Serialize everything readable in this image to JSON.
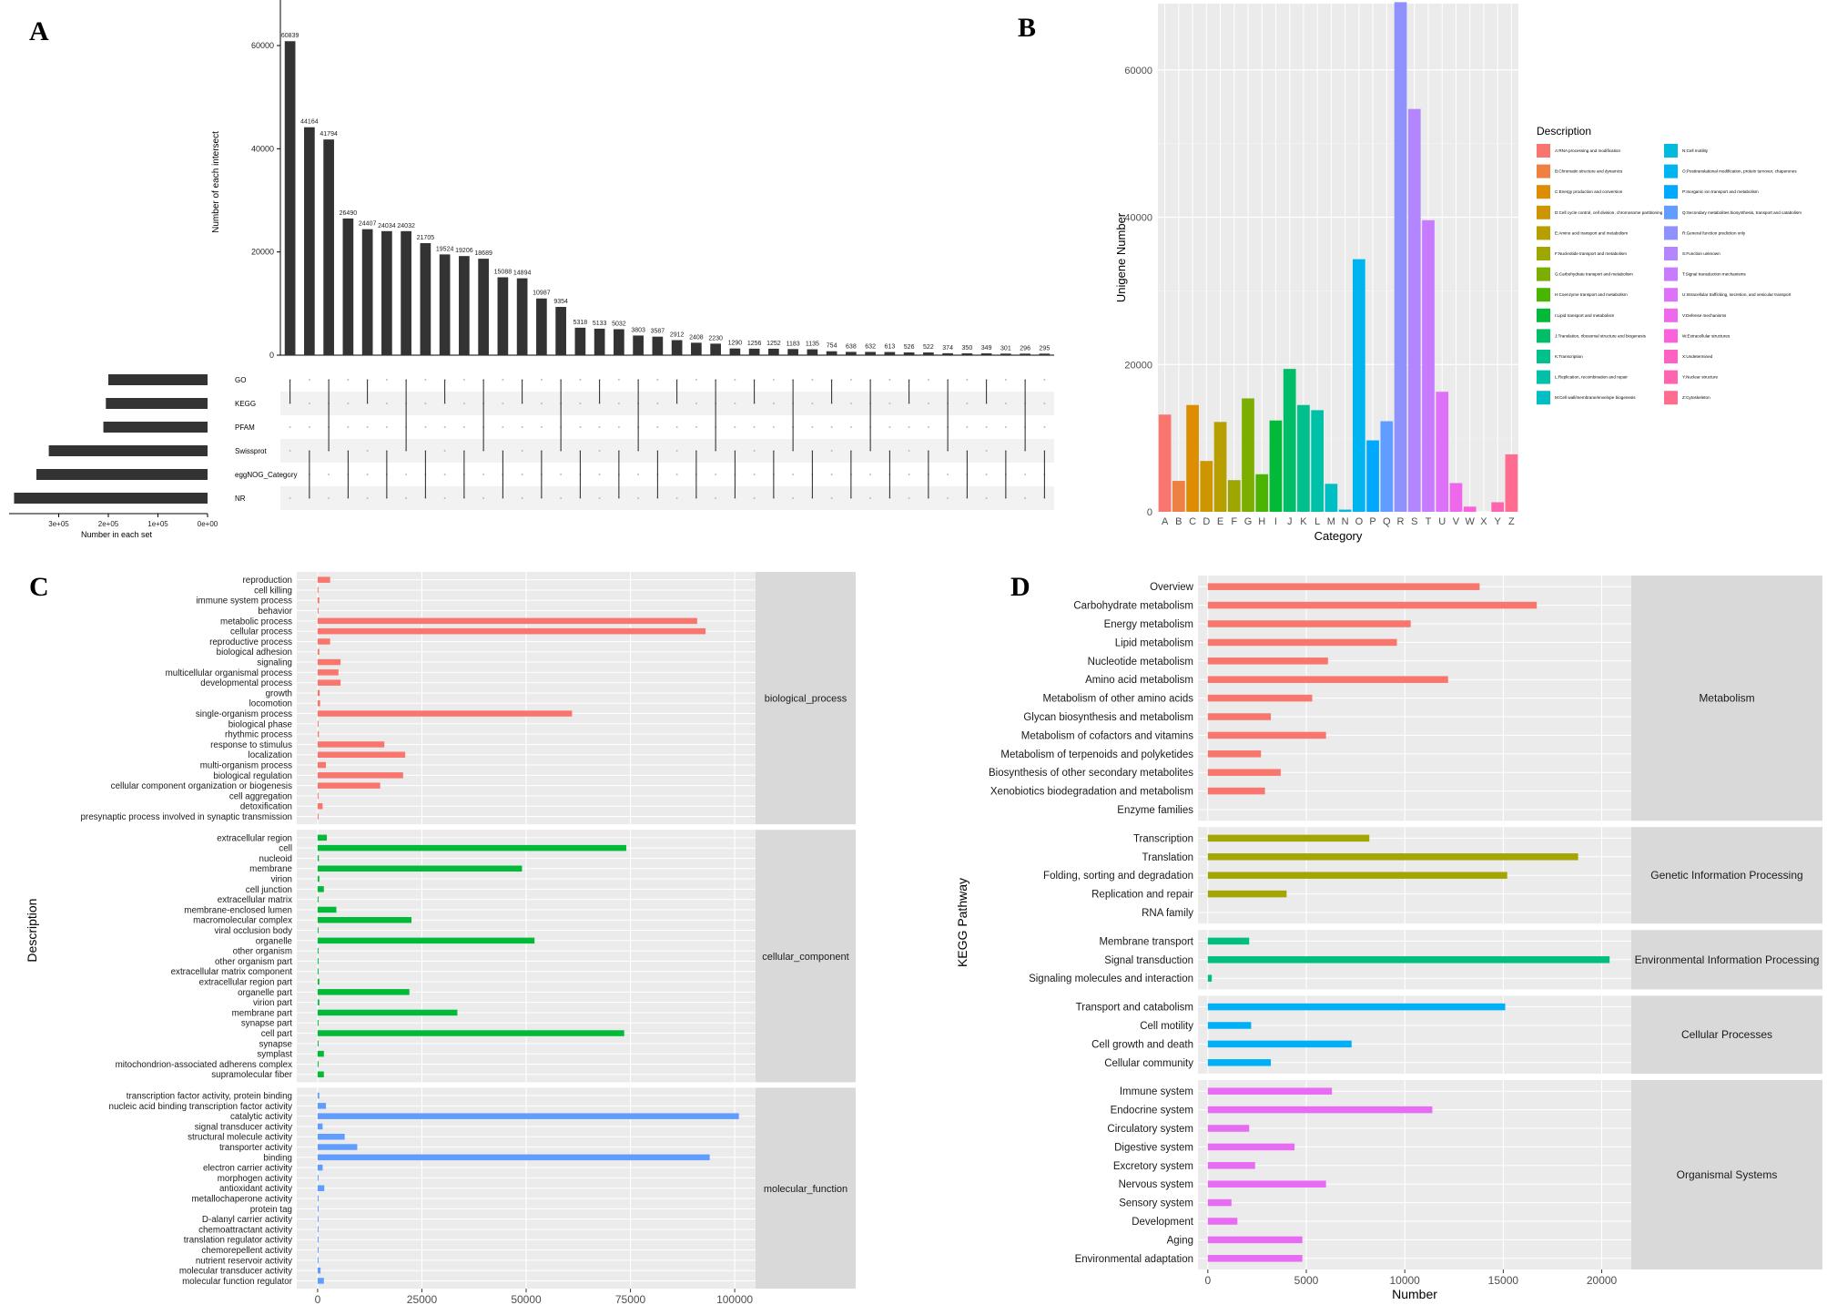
{
  "panels": {
    "A": {
      "letter": "A"
    },
    "B": {
      "letter": "B"
    },
    "C": {
      "letter": "C"
    },
    "D": {
      "letter": "D"
    }
  },
  "chart_data": [
    {
      "id": "A",
      "type": "bar",
      "subtype": "upset",
      "ylabel": "Number of each intersect",
      "xlabel_sets": "Number in each set",
      "ylim": [
        0,
        66000
      ],
      "yticks": [
        0,
        20000,
        40000,
        60000
      ],
      "ytick_labels": [
        "0",
        "20000",
        "40000",
        "60000"
      ],
      "intersections": [
        60839,
        44164,
        41794,
        26490,
        24407,
        24034,
        24032,
        21705,
        19524,
        19206,
        18689,
        15088,
        14894,
        10987,
        9354,
        5318,
        5133,
        5032,
        3803,
        3587,
        2912,
        2408,
        2230,
        1290,
        1256,
        1252,
        1183,
        1135,
        754,
        638,
        632,
        613,
        526,
        522,
        374,
        350,
        349,
        301,
        296,
        295
      ],
      "sets": [
        "GO",
        "KEGG",
        "PFAM",
        "Swissprot",
        "eggNOG_Category",
        "NR"
      ],
      "set_sizes": [
        200000,
        205000,
        210000,
        320000,
        345000,
        390000
      ],
      "set_xlim": [
        0,
        400000
      ],
      "set_ticks": [
        300000,
        200000,
        100000,
        0
      ],
      "set_tick_labels": [
        "3e+05",
        "2e+05",
        "1e+05",
        "0e+00"
      ]
    },
    {
      "id": "B",
      "type": "bar",
      "xlabel": "Category",
      "ylabel": "Unigene Number",
      "ylim": [
        0,
        69000
      ],
      "yticks": [
        0,
        20000,
        40000,
        60000
      ],
      "categories": [
        "A",
        "B",
        "C",
        "D",
        "E",
        "F",
        "G",
        "H",
        "I",
        "J",
        "K",
        "L",
        "M",
        "N",
        "O",
        "P",
        "Q",
        "R",
        "S",
        "T",
        "U",
        "V",
        "W",
        "X",
        "Y",
        "Z"
      ],
      "values": [
        13200,
        4200,
        14500,
        6900,
        12200,
        4300,
        15400,
        5100,
        12400,
        19400,
        14500,
        13800,
        3800,
        300,
        34300,
        9700,
        12300,
        69200,
        54700,
        39600,
        16300,
        3900,
        700,
        0,
        1300,
        7800
      ],
      "colors": [
        "#F8766D",
        "#EE8044",
        "#DE8C00",
        "#CD9600",
        "#B79F00",
        "#9DA700",
        "#7CAE00",
        "#49B500",
        "#00BA38",
        "#00BE67",
        "#00C08B",
        "#00C1A8",
        "#00BFC4",
        "#00BBDC",
        "#00B4EF",
        "#00A9FF",
        "#619CFF",
        "#8F91FF",
        "#B385FF",
        "#C77CFF",
        "#DE71F9",
        "#EF67EB",
        "#FA62DB",
        "#FF61C3",
        "#FF64B0",
        "#FF6C90"
      ],
      "legend": {
        "title": "Description",
        "placement": "right",
        "items": [
          "A:RNA processing and modification",
          "B:Chromatin structure and dynamics",
          "C:Energy production and conversion",
          "D:Cell cycle control, cell division, chromosome partitioning",
          "E:Amino acid transport and metabolism",
          "F:Nucleotide transport and metabolism",
          "G:Carbohydrate transport and metabolism",
          "H:Coenzyme transport and metabolism",
          "I:Lipid transport and metabolism",
          "J:Translation, ribosomal structure and biogenesis",
          "K:Transcription",
          "L:Replication, recombination and repair",
          "M:Cell wall/membrane/envelope biogenesis",
          "N:Cell motility",
          "O:Posttranslational modification, protein turnover, chaperones",
          "P:Inorganic ion transport and metabolism",
          "Q:Secondary metabolites biosynthesis, transport and catabolism",
          "R:General function prediction only",
          "S:Function unknown",
          "T:Signal transduction mechanisms",
          "U:Intracellular trafficking, secretion, and vesicular transport",
          "V:Defense mechanisms",
          "W:Extracellular structures",
          "X:Undetermined",
          "Y:Nuclear structure",
          "Z:Cytoskeleton"
        ]
      }
    },
    {
      "id": "C",
      "type": "bar",
      "orientation": "horizontal",
      "xlabel": "Number",
      "ylabel": "Description",
      "xlim": [
        -5000,
        105000
      ],
      "xticks": [
        0,
        25000,
        50000,
        75000,
        100000
      ],
      "groups": [
        {
          "name": "biological_process",
          "color": "#F8766D",
          "labels": [
            "reproduction",
            "cell killing",
            "immune system process",
            "behavior",
            "metabolic process",
            "cellular process",
            "reproductive process",
            "biological adhesion",
            "signaling",
            "multicellular organismal process",
            "developmental process",
            "growth",
            "locomotion",
            "single-organism process",
            "biological phase",
            "rhythmic process",
            "response to stimulus",
            "localization",
            "multi-organism process",
            "biological regulation",
            "cellular component organization or biogenesis",
            "cell aggregation",
            "detoxification",
            "presynaptic process involved in synaptic transmission"
          ],
          "values": [
            3000,
            50,
            400,
            100,
            91000,
            93000,
            3000,
            400,
            5500,
            5000,
            5500,
            500,
            600,
            61000,
            150,
            300,
            16000,
            21000,
            2000,
            20500,
            15000,
            50,
            1200,
            20
          ]
        },
        {
          "name": "cellular_component",
          "color": "#00BA38",
          "labels": [
            "extracellular region",
            "cell",
            "nucleoid",
            "membrane",
            "virion",
            "cell junction",
            "extracellular matrix",
            "membrane-enclosed lumen",
            "macromolecular complex",
            "viral occlusion body",
            "organelle",
            "other organism",
            "other organism part",
            "extracellular matrix component",
            "extracellular region part",
            "organelle part",
            "virion part",
            "membrane part",
            "synapse part",
            "cell part",
            "synapse",
            "symplast",
            "mitochondrion-associated adherens complex",
            "supramolecular fiber"
          ],
          "values": [
            2200,
            74000,
            300,
            49000,
            400,
            1500,
            200,
            4500,
            22500,
            10,
            52000,
            100,
            100,
            30,
            400,
            22000,
            400,
            33500,
            80,
            73500,
            100,
            1500,
            10,
            1500
          ]
        },
        {
          "name": "molecular_function",
          "color": "#619CFF",
          "labels": [
            "transcription factor activity, protein binding",
            "nucleic acid binding transcription factor activity",
            "catalytic activity",
            "signal transducer activity",
            "structural molecule activity",
            "transporter activity",
            "binding",
            "electron carrier activity",
            "morphogen activity",
            "antioxidant activity",
            "metallochaperone activity",
            "protein tag",
            "D-alanyl carrier activity",
            "chemoattractant activity",
            "translation regulator activity",
            "chemorepellent activity",
            "nutrient reservoir activity",
            "molecular transducer activity",
            "molecular function regulator"
          ],
          "values": [
            400,
            2000,
            101000,
            1200,
            6500,
            9500,
            94000,
            1200,
            20,
            1600,
            20,
            20,
            10,
            10,
            200,
            10,
            100,
            700,
            1500
          ]
        }
      ]
    },
    {
      "id": "D",
      "type": "bar",
      "orientation": "horizontal",
      "xlabel": "Number",
      "ylabel": "KEGG Pathway",
      "xlim": [
        -500,
        21500
      ],
      "xticks": [
        0,
        5000,
        10000,
        15000,
        20000
      ],
      "groups": [
        {
          "name": "Metabolism",
          "color": "#F8766D",
          "labels": [
            "Overview",
            "Carbohydrate metabolism",
            "Energy metabolism",
            "Lipid metabolism",
            "Nucleotide metabolism",
            "Amino acid metabolism",
            "Metabolism of other amino acids",
            "Glycan biosynthesis and metabolism",
            "Metabolism of cofactors and vitamins",
            "Metabolism of terpenoids and polyketides",
            "Biosynthesis of other secondary metabolites",
            "Xenobiotics biodegradation and metabolism",
            "Enzyme families"
          ],
          "values": [
            13800,
            16700,
            10300,
            9600,
            6100,
            12200,
            5300,
            3200,
            6000,
            2700,
            3700,
            2900,
            0
          ]
        },
        {
          "name": "Genetic Information Processing",
          "color": "#A3A500",
          "labels": [
            "Transcription",
            "Translation",
            "Folding, sorting and degradation",
            "Replication and repair",
            "RNA family"
          ],
          "values": [
            8200,
            18800,
            15200,
            4000,
            0
          ]
        },
        {
          "name": "Environmental Information Processing",
          "color": "#00BF7D",
          "labels": [
            "Membrane transport",
            "Signal transduction",
            "Signaling molecules and interaction"
          ],
          "values": [
            2100,
            20400,
            200
          ]
        },
        {
          "name": "Cellular Processes",
          "color": "#00B0F6",
          "labels": [
            "Transport and catabolism",
            "Cell motility",
            "Cell growth and death",
            "Cellular community"
          ],
          "values": [
            15100,
            2200,
            7300,
            3200
          ]
        },
        {
          "name": "Organismal Systems",
          "color": "#E76BF3",
          "labels": [
            "Immune system",
            "Endocrine system",
            "Circulatory system",
            "Digestive system",
            "Excretory system",
            "Nervous system",
            "Sensory system",
            "Development",
            "Aging",
            "Environmental adaptation"
          ],
          "values": [
            6300,
            11400,
            2100,
            4400,
            2400,
            6000,
            1200,
            1500,
            4800,
            4800
          ]
        }
      ]
    }
  ]
}
